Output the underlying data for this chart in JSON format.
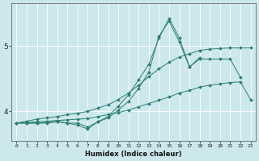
{
  "title": "",
  "xlabel": "Humidex (Indice chaleur)",
  "x_values": [
    0,
    1,
    2,
    3,
    4,
    5,
    6,
    7,
    8,
    9,
    10,
    11,
    12,
    13,
    14,
    15,
    16,
    17,
    18,
    19,
    20,
    21,
    22,
    23
  ],
  "line1_y": [
    3.82,
    3.82,
    3.82,
    3.82,
    3.84,
    3.82,
    3.82,
    3.76,
    3.84,
    3.9,
    4.02,
    4.15,
    4.35,
    4.6,
    5.15,
    5.38,
    5.06,
    4.68,
    4.8,
    4.8,
    4.8,
    4.8,
    4.52,
    null
  ],
  "line2_y": [
    3.82,
    3.82,
    3.82,
    3.83,
    3.85,
    3.82,
    3.79,
    3.73,
    3.84,
    3.92,
    4.08,
    4.25,
    4.48,
    4.72,
    5.12,
    5.42,
    5.12,
    4.68,
    4.82,
    null,
    null,
    null,
    null,
    null
  ],
  "line3_y": [
    3.82,
    3.85,
    3.88,
    3.9,
    3.92,
    3.95,
    3.97,
    4.0,
    4.05,
    4.1,
    4.18,
    4.28,
    4.4,
    4.53,
    4.65,
    4.75,
    4.83,
    4.88,
    4.93,
    4.95,
    4.96,
    4.97,
    4.97,
    4.97
  ],
  "line4_y": [
    3.82,
    3.83,
    3.84,
    3.85,
    3.86,
    3.87,
    3.88,
    3.89,
    3.92,
    3.95,
    3.98,
    4.02,
    4.07,
    4.12,
    4.17,
    4.22,
    4.28,
    4.32,
    4.37,
    4.4,
    4.42,
    4.44,
    4.45,
    4.18
  ],
  "color": "#2d7d74",
  "bg_color": "#cce8ec",
  "grid_color": "#ffffff",
  "yticks": [
    4,
    5
  ],
  "ylim": [
    3.55,
    5.65
  ],
  "xlim": [
    -0.5,
    23.5
  ],
  "marker": "D",
  "marker_size": 2.0,
  "linewidth": 0.7
}
